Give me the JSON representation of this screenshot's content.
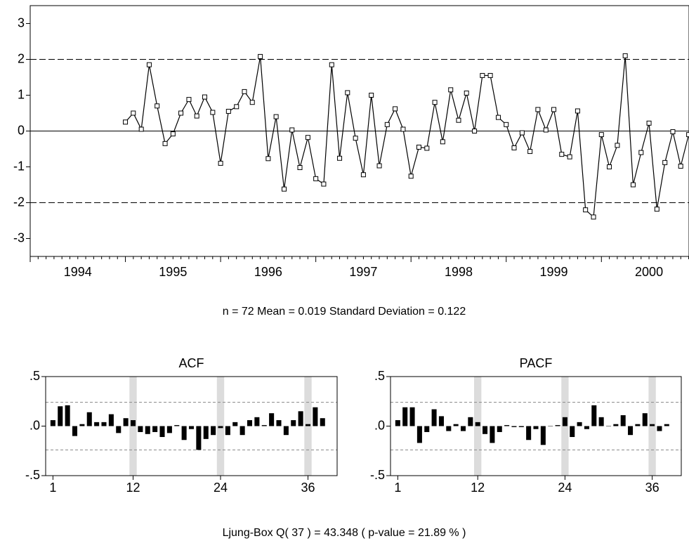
{
  "chart_data": [
    {
      "type": "line",
      "color": "#000000",
      "annotation": "n = 72   Mean = 0.019   Standard Deviation = 0.122",
      "x": [
        1995,
        1995.083,
        1995.167,
        1995.25,
        1995.333,
        1995.417,
        1995.5,
        1995.583,
        1995.667,
        1995.75,
        1995.833,
        1995.917,
        1996,
        1996.083,
        1996.167,
        1996.25,
        1996.333,
        1996.417,
        1996.5,
        1996.583,
        1996.667,
        1996.75,
        1996.833,
        1996.917,
        1997,
        1997.083,
        1997.167,
        1997.25,
        1997.333,
        1997.417,
        1997.5,
        1997.583,
        1997.667,
        1997.75,
        1997.833,
        1997.917,
        1998,
        1998.083,
        1998.167,
        1998.25,
        1998.333,
        1998.417,
        1998.5,
        1998.583,
        1998.667,
        1998.75,
        1998.833,
        1998.917,
        1999,
        1999.083,
        1999.167,
        1999.25,
        1999.333,
        1999.417,
        1999.5,
        1999.583,
        1999.667,
        1999.75,
        1999.833,
        1999.917,
        2000,
        2000.083,
        2000.167,
        2000.25,
        2000.333,
        2000.417,
        2000.5,
        2000.583,
        2000.667,
        2000.75,
        2000.833,
        2000.917
      ],
      "values": [
        0.25,
        0.5,
        0.05,
        1.85,
        0.7,
        -0.35,
        -0.08,
        0.5,
        0.88,
        0.42,
        0.95,
        0.52,
        -0.9,
        0.55,
        0.68,
        1.1,
        0.8,
        2.08,
        -0.77,
        0.4,
        -1.62,
        0.03,
        -1.02,
        -0.18,
        -1.33,
        -1.48,
        1.85,
        -0.76,
        1.07,
        -0.2,
        -1.22,
        1.0,
        -0.97,
        0.18,
        0.62,
        0.05,
        -1.26,
        -0.45,
        -0.48,
        0.8,
        -0.3,
        1.15,
        0.3,
        1.06,
        0.0,
        1.55,
        1.55,
        0.38,
        0.18,
        -0.47,
        -0.05,
        -0.57,
        0.6,
        0.03,
        0.6,
        -0.65,
        -0.72,
        0.56,
        -2.2,
        -2.4,
        -0.1,
        -1.0,
        -0.4,
        2.1,
        -1.5,
        -0.6,
        0.22,
        -2.18,
        -0.88,
        -0.02,
        -0.98,
        -0.1
      ],
      "xlim": [
        1994,
        2000.92
      ],
      "xticks": [
        1994,
        1995,
        1996,
        1997,
        1998,
        1999,
        2000
      ],
      "ylim": [
        -3.5,
        3.5
      ],
      "yticks": [
        -3,
        -2,
        -1,
        0,
        1,
        2,
        3
      ],
      "reference_lines": [
        -2,
        0,
        2
      ]
    },
    {
      "type": "bar",
      "title": "ACF",
      "color": "#000000",
      "x": [
        1,
        2,
        3,
        4,
        5,
        6,
        7,
        8,
        9,
        10,
        11,
        12,
        13,
        14,
        15,
        16,
        17,
        18,
        19,
        20,
        21,
        22,
        23,
        24,
        25,
        26,
        27,
        28,
        29,
        30,
        31,
        32,
        33,
        34,
        35,
        36,
        37,
        38
      ],
      "values": [
        0.06,
        0.2,
        0.21,
        -0.1,
        0.02,
        0.14,
        0.04,
        0.04,
        0.12,
        -0.07,
        0.08,
        0.06,
        -0.06,
        -0.08,
        -0.06,
        -0.11,
        -0.07,
        0.01,
        -0.14,
        -0.03,
        -0.24,
        -0.13,
        -0.09,
        -0.02,
        -0.09,
        0.04,
        -0.09,
        0.06,
        0.09,
        0.01,
        0.13,
        0.06,
        -0.09,
        0.06,
        0.15,
        0.02,
        0.19,
        0.08
      ],
      "xlim": [
        0,
        40
      ],
      "xticks": [
        1,
        12,
        24,
        36
      ],
      "ylim": [
        -0.5,
        0.5
      ],
      "yticks": [
        {
          "value": -0.5,
          "label": "-.5"
        },
        {
          "value": 0,
          "label": ".0"
        },
        {
          "value": 0.5,
          "label": ".5"
        }
      ],
      "bands": [
        -0.24,
        0.24
      ],
      "shaded_lags": [
        12,
        24,
        36
      ]
    },
    {
      "type": "bar",
      "title": "PACF",
      "color": "#000000",
      "x": [
        1,
        2,
        3,
        4,
        5,
        6,
        7,
        8,
        9,
        10,
        11,
        12,
        13,
        14,
        15,
        16,
        17,
        18,
        19,
        20,
        21,
        22,
        23,
        24,
        25,
        26,
        27,
        28,
        29,
        30,
        31,
        32,
        33,
        34,
        35,
        36,
        37,
        38
      ],
      "values": [
        0.06,
        0.19,
        0.19,
        -0.17,
        -0.06,
        0.17,
        0.1,
        -0.05,
        0.02,
        -0.05,
        0.09,
        0.04,
        -0.08,
        -0.17,
        -0.06,
        0.01,
        -0.01,
        -0.01,
        -0.14,
        -0.03,
        -0.19,
        0.0,
        0.01,
        0.09,
        -0.11,
        0.04,
        -0.03,
        0.21,
        0.09,
        0.0,
        0.02,
        0.11,
        -0.09,
        0.02,
        0.13,
        0.02,
        -0.05,
        0.02
      ],
      "xlim": [
        0,
        40
      ],
      "xticks": [
        1,
        12,
        24,
        36
      ],
      "ylim": [
        -0.5,
        0.5
      ],
      "yticks": [
        {
          "value": -0.5,
          "label": "-.5"
        },
        {
          "value": 0,
          "label": ".0"
        },
        {
          "value": 0.5,
          "label": ".5"
        }
      ],
      "bands": [
        -0.24,
        0.24
      ],
      "shaded_lags": [
        12,
        24,
        36
      ]
    }
  ],
  "footer": "Ljung-Box Q( 37 ) = 43.348  ( p-value = 21.89 % )"
}
